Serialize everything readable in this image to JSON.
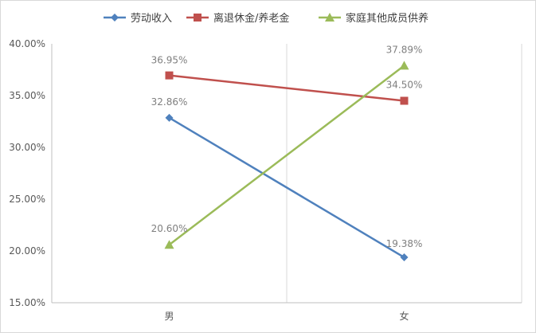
{
  "chart_data": {
    "type": "line",
    "categories": [
      "男",
      "女"
    ],
    "series": [
      {
        "name": "劳动收入",
        "values": [
          32.86,
          19.38
        ],
        "labels": [
          "32.86%",
          "19.38%"
        ],
        "color": "#4f81bd",
        "marker": "diamond"
      },
      {
        "name": "离退休金/养老金",
        "values": [
          36.95,
          34.5
        ],
        "labels": [
          "36.95%",
          "34.50%"
        ],
        "color": "#c0504d",
        "marker": "square"
      },
      {
        "name": "家庭其他成员供养",
        "values": [
          20.6,
          37.89
        ],
        "labels": [
          "20.60%",
          "37.89%"
        ],
        "color": "#9bbb59",
        "marker": "triangle"
      }
    ],
    "ylim": [
      15,
      40
    ],
    "yticks": [
      "15.00%",
      "20.00%",
      "25.00%",
      "30.00%",
      "35.00%",
      "40.00%"
    ],
    "legend_position": "top",
    "grid": "vertical category separators"
  }
}
